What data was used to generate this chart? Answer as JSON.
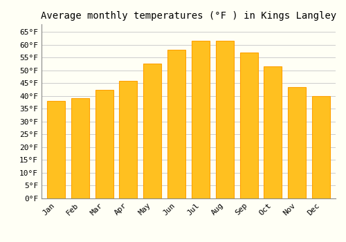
{
  "title": "Average monthly temperatures (°F ) in Kings Langley",
  "months": [
    "Jan",
    "Feb",
    "Mar",
    "Apr",
    "May",
    "Jun",
    "Jul",
    "Aug",
    "Sep",
    "Oct",
    "Nov",
    "Dec"
  ],
  "values": [
    38,
    39,
    42.5,
    46,
    52.5,
    58,
    61.5,
    61.5,
    57,
    51.5,
    43.5,
    40
  ],
  "bar_color": "#FFC020",
  "bar_edge_color": "#FFA000",
  "background_color": "#FFFFF5",
  "grid_color": "#CCCCCC",
  "ylim": [
    0,
    68
  ],
  "yticks": [
    0,
    5,
    10,
    15,
    20,
    25,
    30,
    35,
    40,
    45,
    50,
    55,
    60,
    65
  ],
  "title_fontsize": 10,
  "tick_fontsize": 8,
  "font_family": "monospace"
}
